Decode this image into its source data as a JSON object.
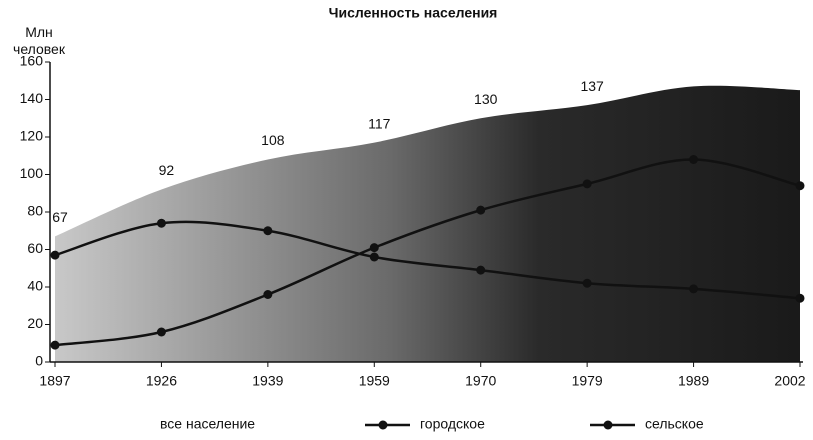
{
  "chart_data": {
    "type": "area-line",
    "title": "Численность населения",
    "ylabel": "Млн человек",
    "categories": [
      "1897",
      "1926",
      "1939",
      "1959",
      "1970",
      "1979",
      "1989",
      "2002"
    ],
    "ylim": [
      0,
      160
    ],
    "yticks": [
      0,
      20,
      40,
      60,
      80,
      100,
      120,
      140,
      160
    ],
    "series": [
      {
        "name": "все население",
        "kind": "area",
        "color": "#555555",
        "values": [
          67,
          92,
          108,
          117,
          130,
          137,
          147,
          145
        ],
        "value_labels": [
          "67",
          "92",
          "108",
          "117",
          "130",
          "137",
          null,
          null
        ]
      },
      {
        "name": "городское",
        "kind": "line",
        "color": "#111111",
        "values": [
          9,
          16,
          36,
          61,
          81,
          95,
          108,
          94
        ]
      },
      {
        "name": "сельское",
        "kind": "line",
        "color": "#111111",
        "values": [
          57,
          74,
          70,
          56,
          49,
          42,
          39,
          34
        ]
      }
    ]
  }
}
